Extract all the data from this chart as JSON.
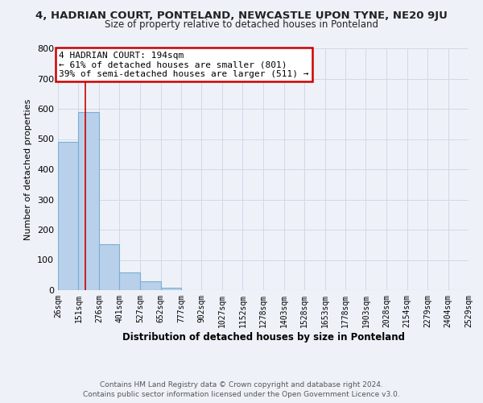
{
  "title": "4, HADRIAN COURT, PONTELAND, NEWCASTLE UPON TYNE, NE20 9JU",
  "subtitle": "Size of property relative to detached houses in Ponteland",
  "xlabel": "Distribution of detached houses by size in Ponteland",
  "ylabel": "Number of detached properties",
  "bar_edges": [
    26,
    151,
    276,
    401,
    527,
    652,
    777,
    902,
    1027,
    1152,
    1278,
    1403,
    1528,
    1653,
    1778,
    1903,
    2028,
    2154,
    2279,
    2404,
    2529
  ],
  "bar_heights": [
    490,
    590,
    152,
    60,
    30,
    8,
    0,
    0,
    0,
    0,
    0,
    0,
    0,
    0,
    0,
    0,
    0,
    0,
    0,
    0
  ],
  "bar_color": "#b8d0ea",
  "bar_edgecolor": "#7aafd4",
  "property_line_x": 194,
  "property_line_color": "#cc0000",
  "ylim": [
    0,
    800
  ],
  "yticks": [
    0,
    100,
    200,
    300,
    400,
    500,
    600,
    700,
    800
  ],
  "tick_labels": [
    "26sqm",
    "151sqm",
    "276sqm",
    "401sqm",
    "527sqm",
    "652sqm",
    "777sqm",
    "902sqm",
    "1027sqm",
    "1152sqm",
    "1278sqm",
    "1403sqm",
    "1528sqm",
    "1653sqm",
    "1778sqm",
    "1903sqm",
    "2028sqm",
    "2154sqm",
    "2279sqm",
    "2404sqm",
    "2529sqm"
  ],
  "annotation_title": "4 HADRIAN COURT: 194sqm",
  "annotation_line1": "← 61% of detached houses are smaller (801)",
  "annotation_line2": "39% of semi-detached houses are larger (511) →",
  "annotation_box_color": "#cc0000",
  "footer_line1": "Contains HM Land Registry data © Crown copyright and database right 2024.",
  "footer_line2": "Contains public sector information licensed under the Open Government Licence v3.0.",
  "grid_color": "#d0d8e8",
  "background_color": "#eef2f8",
  "title_fontsize": 9.5,
  "subtitle_fontsize": 8.5,
  "xlabel_fontsize": 8.5,
  "ylabel_fontsize": 8.0,
  "annot_fontsize": 8.0,
  "footer_fontsize": 6.5
}
